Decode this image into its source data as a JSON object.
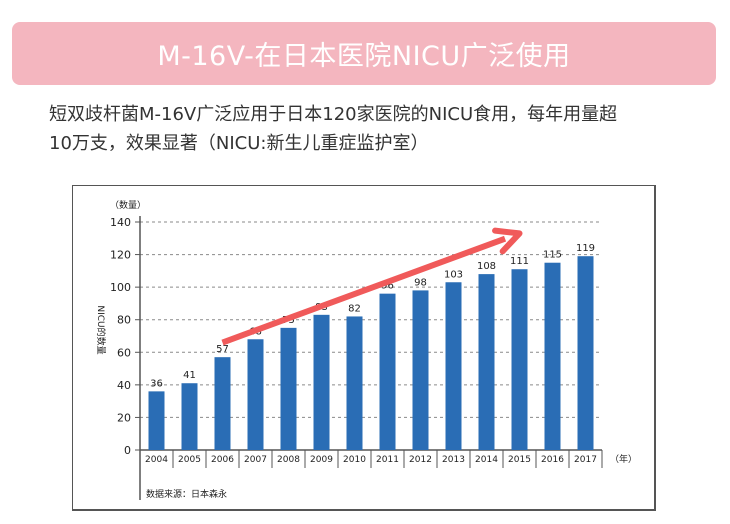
{
  "banner": {
    "title": "M-16V-在日本医院NICU广泛使用"
  },
  "description": {
    "line1": "短双歧杆菌M-16V广泛应用于日本120家医院的NICU食用，每年用量超",
    "line2": "10万支，效果显著（NICU:新生儿重症监护室）"
  },
  "colors": {
    "banner": "#f4b6bf",
    "bar": "#2a6db5",
    "arrow": "#f05a5a"
  },
  "chart_data": {
    "type": "bar",
    "title": "",
    "ylabel": "NICU的数量",
    "yunit": "（数量）",
    "xunit": "（年）",
    "source": "数据来源：日本森永",
    "categories": [
      "2004",
      "2005",
      "2006",
      "2007",
      "2008",
      "2009",
      "2010",
      "2011",
      "2012",
      "2013",
      "2014",
      "2015",
      "2016",
      "2017"
    ],
    "values": [
      36,
      41,
      57,
      68,
      75,
      83,
      82,
      96,
      98,
      103,
      108,
      111,
      115,
      119
    ],
    "ylim": [
      0,
      140
    ],
    "yticks": [
      0,
      20,
      40,
      60,
      80,
      100,
      120,
      140
    ],
    "grid": true,
    "trend_arrow": {
      "from": {
        "category": "2006",
        "value": 66
      },
      "to": {
        "category": "2015",
        "value": 133
      }
    }
  }
}
